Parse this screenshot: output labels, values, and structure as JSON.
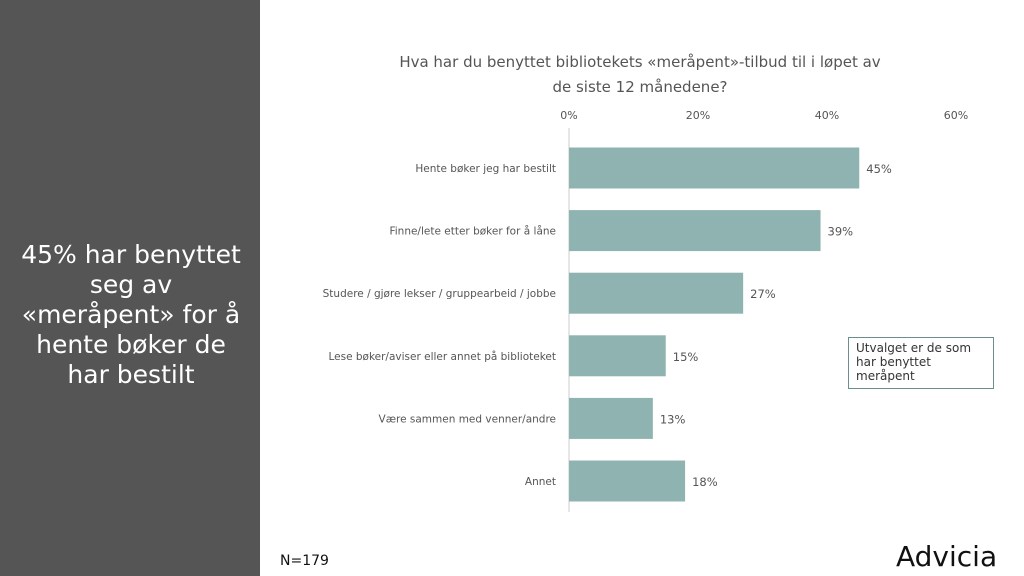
{
  "headline": "45% har benyttet seg av «meråpent» for å hente bøker de har bestilt",
  "note": "Utvalget er de som har benyttet meråpent",
  "sample": "N=179",
  "logo": "Advicia",
  "colors": {
    "bar": "#8fb3b0",
    "sidebar": "#555555",
    "axis": "#cccccc",
    "text": "#555555"
  },
  "chart_data": {
    "type": "bar",
    "orientation": "horizontal",
    "title": "Hva har du benyttet bibliotekets «meråpent»-tilbud til i løpet av de siste 12 månedene?",
    "title_lines": [
      "Hva har du benyttet bibliotekets «meråpent»-tilbud til i løpet av",
      "de siste 12 månedene?"
    ],
    "xlim": [
      0,
      60
    ],
    "ticks": [
      0,
      20,
      40,
      60
    ],
    "tick_labels": [
      "0%",
      "20%",
      "40%",
      "60%"
    ],
    "axis_position": "top",
    "grid": false,
    "categories": [
      "Hente bøker jeg har bestilt",
      "Finne/lete etter bøker for å låne",
      "Studere / gjøre lekser / gruppearbeid / jobbe",
      "Lese bøker/aviser eller annet på biblioteket",
      "Være sammen med venner/andre",
      "Annet"
    ],
    "values": [
      45,
      39,
      27,
      15,
      13,
      18
    ],
    "value_labels": [
      "45%",
      "39%",
      "27%",
      "15%",
      "13%",
      "18%"
    ]
  }
}
